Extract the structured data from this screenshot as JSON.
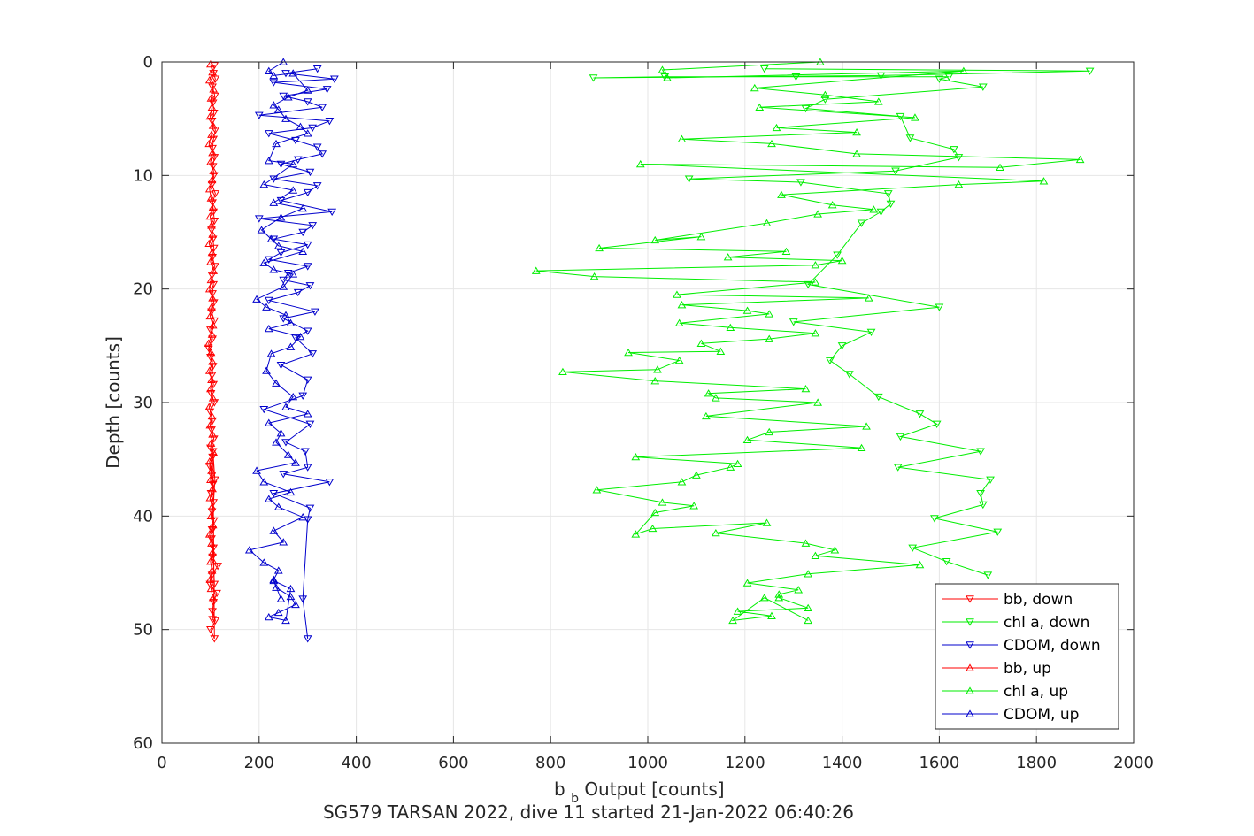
{
  "chart_data": {
    "type": "line",
    "title": "SG579 TARSAN 2022, dive 11 started 21-Jan-2022 06:40:26",
    "xlabel_main": "b",
    "xlabel_sub": "b",
    "xlabel_rest": " Output [counts]",
    "ylabel": "Depth [counts]",
    "xlim": [
      0,
      2000
    ],
    "ylim": [
      0,
      60
    ],
    "y_reversed": true,
    "grid": true,
    "legend_position": "lower-right",
    "x_ticks": [
      "0",
      "200",
      "400",
      "600",
      "800",
      "1000",
      "1200",
      "1400",
      "1600",
      "1800",
      "2000"
    ],
    "y_ticks": [
      "0",
      "10",
      "20",
      "30",
      "40",
      "50",
      "60"
    ],
    "series": [
      {
        "name": "bb, down",
        "color": "#ff0000",
        "marker": "down-triangle",
        "x": [
          108,
          106,
          110,
          104,
          109,
          105,
          107,
          103,
          110,
          106,
          104,
          108,
          105,
          107,
          103,
          110,
          104,
          106,
          108,
          102,
          105,
          107,
          104,
          109,
          103,
          106,
          104,
          107,
          102,
          108,
          100,
          104,
          96,
          100,
          105,
          103,
          106,
          101,
          108,
          99,
          104,
          102,
          107,
          100,
          104,
          98,
          103,
          105,
          101,
          106,
          103,
          107,
          104,
          102,
          106,
          104,
          115,
          103,
          99,
          113,
          106,
          104,
          110,
          100,
          108,
          105,
          109,
          103,
          108,
          104
        ],
        "y": [
          0.3,
          1.0,
          1.5,
          2.2,
          3.0,
          3.6,
          4.5,
          5.2,
          6.0,
          6.8,
          7.6,
          8.4,
          9.2,
          10.0,
          10.8,
          11.6,
          12.4,
          13.2,
          14.0,
          14.8,
          15.6,
          16.4,
          17.2,
          18.0,
          18.8,
          19.6,
          20.4,
          21.2,
          22.0,
          22.8,
          23.6,
          24.4,
          25.2,
          26.0,
          26.8,
          27.6,
          28.4,
          29.2,
          30.0,
          30.8,
          31.6,
          32.4,
          33.2,
          34.0,
          34.8,
          35.6,
          36.4,
          37.2,
          38.0,
          38.8,
          39.6,
          40.4,
          41.2,
          42.0,
          42.8,
          43.6,
          44.4,
          45.2,
          46.0,
          46.8,
          47.6,
          48.4,
          49.2,
          50.0,
          50.8,
          34.3,
          36.8,
          41.2,
          46.0,
          49.1
        ]
      },
      {
        "name": "chl a, down",
        "color": "#00ee00",
        "marker": "down-triangle",
        "x": [
          1240,
          1910,
          1480,
          888,
          1035,
          1305,
          1620,
          1600,
          1690,
          1365,
          1325,
          1520,
          1540,
          1630,
          1640,
          1510,
          1085,
          1315,
          1495,
          1500,
          1480,
          1440,
          1390,
          1330,
          1600,
          1300,
          1460,
          1400,
          1375,
          1415,
          1475,
          1560,
          1595,
          1520,
          1685,
          1515,
          1705,
          1685,
          1690,
          1590,
          1720,
          1545,
          1615,
          1700
        ],
        "y": [
          0.6,
          0.8,
          1.2,
          1.4,
          1.3,
          1.3,
          1.3,
          1.5,
          2.2,
          3.3,
          4.1,
          4.8,
          6.7,
          7.7,
          8.4,
          9.6,
          10.3,
          10.6,
          11.6,
          12.5,
          13.2,
          14.2,
          17.0,
          19.6,
          21.6,
          22.9,
          23.8,
          25.0,
          26.3,
          27.5,
          29.5,
          31.0,
          31.9,
          33.0,
          34.3,
          35.7,
          36.8,
          38.0,
          39.0,
          40.2,
          41.4,
          42.8,
          44.0,
          45.2
        ]
      },
      {
        "name": "CDOM, down",
        "color": "#0000cc",
        "marker": "down-triangle",
        "x": [
          320,
          255,
          355,
          230,
          340,
          250,
          300,
          330,
          200,
          345,
          310,
          220,
          275,
          320,
          330,
          280,
          245,
          305,
          230,
          320,
          300,
          245,
          350,
          200,
          310,
          290,
          230,
          300,
          245,
          220,
          300,
          260,
          250,
          305,
          280,
          220,
          315,
          250,
          300,
          275,
          310,
          245,
          300,
          290,
          210,
          305,
          255,
          295,
          300,
          250,
          345,
          230,
          305,
          300,
          290,
          300
        ],
        "y": [
          0.6,
          1.0,
          1.5,
          1.8,
          2.4,
          3.0,
          3.5,
          4.0,
          4.7,
          5.2,
          5.8,
          6.3,
          6.9,
          7.5,
          8.1,
          8.6,
          9.0,
          9.7,
          10.3,
          10.9,
          11.5,
          12.2,
          13.2,
          13.8,
          14.4,
          15.0,
          15.6,
          16.1,
          16.8,
          17.4,
          18.0,
          18.6,
          19.2,
          19.7,
          20.3,
          21.0,
          22.0,
          22.6,
          23.7,
          24.3,
          25.7,
          26.7,
          28.0,
          29.4,
          30.6,
          31.9,
          33.5,
          34.3,
          35.7,
          36.3,
          37.0,
          38.0,
          39.3,
          40.3,
          47.3,
          50.8
        ]
      },
      {
        "name": "bb, up",
        "color": "#ff0000",
        "marker": "up-triangle",
        "x": [
          100,
          104,
          98,
          106,
          101,
          103,
          99,
          105,
          102,
          97,
          104,
          100,
          106,
          103,
          98,
          101,
          105,
          99,
          102,
          104,
          97,
          103,
          100,
          106,
          101,
          98,
          104,
          102,
          99,
          105,
          103,
          96,
          101,
          104,
          98,
          102,
          100,
          105,
          97,
          103,
          99,
          104,
          101,
          106,
          98,
          102,
          100,
          104,
          99,
          103,
          101,
          105,
          98,
          102,
          104,
          100,
          103,
          99,
          101,
          105
        ],
        "y": [
          0.2,
          0.9,
          1.6,
          2.4,
          3.2,
          4.0,
          4.8,
          5.6,
          6.4,
          7.2,
          8.0,
          8.8,
          9.6,
          10.4,
          11.2,
          12.0,
          12.8,
          13.6,
          14.4,
          15.2,
          16.0,
          16.8,
          17.6,
          18.4,
          19.2,
          20.0,
          20.8,
          21.6,
          22.4,
          23.2,
          24.0,
          24.8,
          25.6,
          26.4,
          27.2,
          28.0,
          28.8,
          29.6,
          30.4,
          31.2,
          32.0,
          32.8,
          33.6,
          34.4,
          35.2,
          36.0,
          36.8,
          37.6,
          38.4,
          39.2,
          40.0,
          40.8,
          41.6,
          42.4,
          43.2,
          44.0,
          44.8,
          45.6,
          46.4,
          47.2
        ]
      },
      {
        "name": "chl a, up",
        "color": "#00ee00",
        "marker": "up-triangle",
        "x": [
          1355,
          1030,
          1040,
          1650,
          1220,
          1365,
          1475,
          1230,
          1550,
          1265,
          1430,
          1070,
          1255,
          1430,
          1890,
          1725,
          985,
          1815,
          1640,
          1275,
          1380,
          1465,
          1350,
          1245,
          1015,
          1110,
          900,
          1285,
          1165,
          1400,
          1345,
          770,
          890,
          1345,
          1060,
          1455,
          1070,
          1205,
          1250,
          1065,
          1170,
          1345,
          1250,
          1110,
          1150,
          960,
          1065,
          1020,
          825,
          1015,
          1325,
          1125,
          1140,
          1350,
          1120,
          1450,
          1250,
          1205,
          1440,
          975,
          1185,
          1170,
          1100,
          1070,
          895,
          1030,
          1095,
          1015,
          975,
          1010,
          1245,
          1140,
          1325,
          1385,
          1345,
          1560,
          1330,
          1205,
          1310,
          1270,
          1270,
          1330,
          1185,
          1255,
          1175,
          1240,
          1330
        ],
        "y": [
          0.0,
          0.7,
          1.4,
          0.8,
          2.3,
          2.9,
          3.5,
          4.0,
          4.9,
          5.8,
          6.2,
          6.8,
          7.2,
          8.1,
          8.6,
          9.3,
          9.0,
          10.5,
          10.8,
          11.7,
          12.6,
          13.0,
          13.4,
          14.2,
          15.7,
          15.4,
          16.4,
          16.7,
          17.2,
          17.5,
          17.9,
          18.4,
          18.9,
          19.4,
          20.5,
          20.8,
          21.4,
          21.9,
          22.2,
          23.0,
          23.4,
          23.9,
          24.4,
          24.8,
          25.5,
          25.6,
          26.3,
          27.1,
          27.3,
          28.1,
          28.8,
          29.2,
          29.6,
          30.0,
          31.2,
          32.1,
          32.6,
          33.3,
          34.0,
          34.8,
          35.4,
          35.7,
          36.4,
          37.0,
          37.7,
          38.8,
          39.1,
          39.7,
          41.6,
          41.1,
          40.6,
          41.5,
          42.4,
          43.0,
          43.5,
          44.3,
          45.1,
          45.9,
          46.5,
          46.9,
          47.2,
          48.1,
          48.4,
          48.8,
          49.2,
          47.2,
          49.2
        ]
      },
      {
        "name": "CDOM, up",
        "color": "#0000cc",
        "marker": "up-triangle",
        "x": [
          250,
          220,
          230,
          270,
          300,
          260,
          230,
          240,
          255,
          285,
          300,
          235,
          220,
          270,
          210,
          270,
          230,
          290,
          245,
          205,
          225,
          240,
          290,
          210,
          230,
          270,
          250,
          195,
          215,
          255,
          265,
          220,
          285,
          265,
          225,
          215,
          235,
          270,
          255,
          300,
          220,
          245,
          235,
          260,
          275,
          195,
          210,
          265,
          220,
          240,
          290,
          230,
          250,
          180,
          210,
          240,
          230,
          235,
          265,
          275,
          240,
          220,
          255,
          265,
          230,
          245
        ],
        "y": [
          0.0,
          0.8,
          1.2,
          1.0,
          2.5,
          3.1,
          3.8,
          4.2,
          5.0,
          5.7,
          6.3,
          7.2,
          8.7,
          9.0,
          10.8,
          11.3,
          12.4,
          12.9,
          13.7,
          14.8,
          15.6,
          16.2,
          16.7,
          17.7,
          18.3,
          18.7,
          19.8,
          20.9,
          21.6,
          22.3,
          23.0,
          23.5,
          24.2,
          25.1,
          25.7,
          27.2,
          28.3,
          29.5,
          30.4,
          31.0,
          31.8,
          32.7,
          33.5,
          34.6,
          35.3,
          36.0,
          37.0,
          37.9,
          38.5,
          39.2,
          40.1,
          41.3,
          42.3,
          43.0,
          44.1,
          44.8,
          45.6,
          46.3,
          47.1,
          47.8,
          48.5,
          48.9,
          49.2,
          46.4,
          45.7,
          47.3
        ]
      }
    ]
  }
}
